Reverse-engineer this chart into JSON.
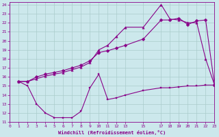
{
  "xlabel": "Windchill (Refroidissement éolien,°C)",
  "xlim": [
    0,
    23
  ],
  "ylim": [
    11,
    24.3
  ],
  "yticks": [
    11,
    12,
    13,
    14,
    15,
    16,
    17,
    18,
    19,
    20,
    21,
    22,
    23,
    24
  ],
  "xticks": [
    0,
    1,
    2,
    3,
    4,
    5,
    6,
    7,
    8,
    9,
    10,
    11,
    12,
    13,
    15,
    17,
    18,
    19,
    20,
    21,
    22,
    23
  ],
  "bg_color": "#cce8ec",
  "grid_color": "#aacccc",
  "line_color": "#880088",
  "line1_x": [
    1,
    2,
    3,
    4,
    5,
    6,
    7,
    8,
    9,
    10,
    11,
    12,
    13,
    15,
    17,
    18,
    19,
    20,
    21,
    22,
    23
  ],
  "line1_y": [
    15.5,
    15.5,
    16.0,
    16.3,
    16.5,
    16.7,
    17.0,
    17.3,
    17.8,
    18.7,
    18.9,
    19.2,
    19.5,
    20.2,
    22.3,
    22.3,
    22.5,
    21.8,
    22.2,
    22.3,
    15.1
  ],
  "line2_x": [
    1,
    2,
    3,
    4,
    5,
    6,
    7,
    8,
    9,
    10,
    11,
    12,
    13,
    15,
    17,
    18,
    19,
    20,
    21,
    22,
    23
  ],
  "line2_y": [
    15.5,
    15.5,
    15.8,
    16.1,
    16.3,
    16.5,
    16.8,
    17.1,
    17.6,
    19.0,
    19.5,
    20.5,
    21.5,
    21.5,
    24.0,
    22.4,
    22.3,
    22.0,
    22.0,
    18.0,
    15.1
  ],
  "line3_x": [
    1,
    2,
    3,
    4,
    5,
    6,
    7,
    8,
    9,
    10,
    11,
    12,
    13,
    15,
    17,
    18,
    19,
    20,
    21,
    22,
    23
  ],
  "line3_y": [
    15.5,
    15.0,
    13.0,
    12.0,
    11.5,
    11.5,
    11.5,
    12.2,
    14.8,
    16.3,
    13.5,
    13.7,
    14.0,
    14.5,
    14.8,
    14.8,
    14.9,
    15.0,
    15.0,
    15.1,
    15.1
  ]
}
